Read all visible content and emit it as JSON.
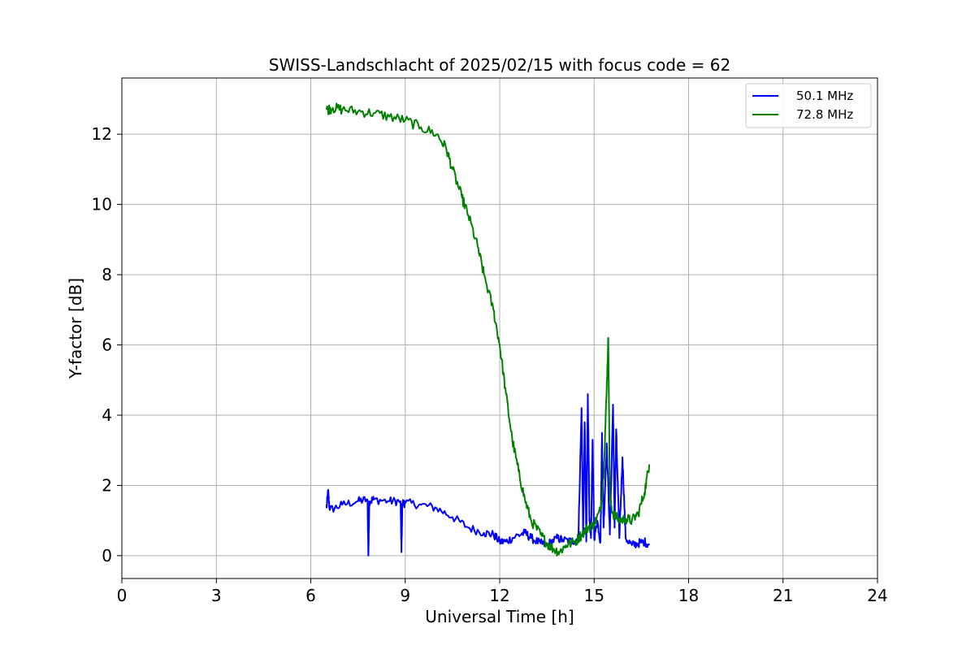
{
  "chart_data": {
    "type": "line",
    "title": "SWISS-Landschlacht of 2025/02/15 with focus code = 62",
    "xlabel": "Universal Time [h]",
    "ylabel": "Y-factor [dB]",
    "xlim": [
      0,
      24
    ],
    "ylim": [
      -0.65,
      13.6
    ],
    "xticks": [
      0,
      3,
      6,
      9,
      12,
      15,
      18,
      21,
      24
    ],
    "yticks": [
      0,
      2,
      4,
      6,
      8,
      10,
      12
    ],
    "grid": true,
    "legend_position": "top-right",
    "series": [
      {
        "name": "50.1 MHz",
        "color": "#0000ff",
        "x": [
          6.5,
          6.55,
          6.6,
          7.0,
          7.5,
          7.8,
          7.83,
          7.86,
          8.0,
          8.5,
          8.85,
          8.88,
          8.91,
          9.0,
          9.5,
          10.0,
          10.5,
          11.0,
          11.5,
          11.8,
          12.0,
          12.2,
          12.5,
          12.8,
          13.0,
          13.3,
          13.5,
          13.8,
          14.0,
          14.3,
          14.5,
          14.6,
          14.65,
          14.7,
          14.75,
          14.8,
          14.85,
          14.9,
          14.95,
          15.0,
          15.1,
          15.2,
          15.25,
          15.3,
          15.4,
          15.5,
          15.6,
          15.65,
          15.7,
          15.8,
          15.9,
          16.0,
          16.2,
          16.4,
          16.6,
          16.75
        ],
        "y": [
          1.35,
          1.85,
          1.3,
          1.45,
          1.55,
          1.6,
          0.0,
          1.55,
          1.6,
          1.55,
          1.55,
          0.1,
          1.5,
          1.5,
          1.45,
          1.35,
          1.1,
          0.8,
          0.65,
          0.6,
          0.4,
          0.4,
          0.55,
          0.65,
          0.5,
          0.35,
          0.3,
          0.5,
          0.45,
          0.4,
          0.5,
          4.2,
          0.6,
          3.8,
          0.4,
          4.6,
          1.0,
          0.5,
          3.3,
          0.5,
          1.0,
          0.4,
          3.5,
          0.8,
          3.2,
          0.6,
          4.3,
          0.8,
          3.6,
          0.5,
          2.8,
          0.5,
          0.3,
          0.35,
          0.4,
          0.3
        ]
      },
      {
        "name": "72.8 MHz",
        "color": "#008000",
        "x": [
          6.5,
          6.7,
          7.0,
          7.5,
          8.0,
          8.5,
          9.0,
          9.5,
          10.0,
          10.3,
          10.5,
          10.8,
          11.0,
          11.3,
          11.5,
          11.8,
          12.0,
          12.2,
          12.4,
          12.6,
          12.8,
          13.0,
          13.3,
          13.5,
          13.7,
          13.9,
          14.1,
          14.4,
          14.6,
          14.8,
          15.0,
          15.2,
          15.3,
          15.4,
          15.45,
          15.5,
          15.6,
          15.8,
          16.0,
          16.2,
          16.4,
          16.6,
          16.75
        ],
        "y": [
          12.7,
          12.75,
          12.7,
          12.65,
          12.6,
          12.5,
          12.4,
          12.2,
          12.0,
          11.6,
          11.0,
          10.2,
          9.7,
          8.8,
          8.0,
          7.0,
          6.0,
          4.6,
          3.3,
          2.4,
          1.6,
          1.0,
          0.6,
          0.35,
          0.2,
          0.1,
          0.3,
          0.4,
          0.6,
          0.8,
          0.9,
          1.3,
          2.2,
          4.8,
          6.2,
          1.6,
          1.2,
          1.0,
          1.05,
          1.0,
          1.2,
          1.8,
          2.6
        ]
      }
    ]
  }
}
